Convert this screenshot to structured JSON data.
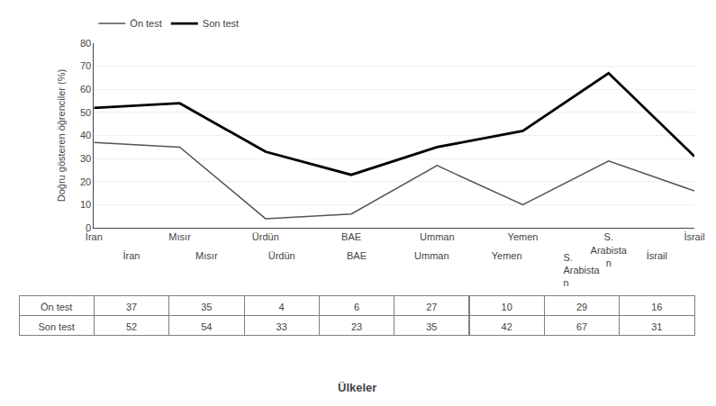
{
  "chart_data": {
    "type": "line",
    "categories": [
      "İran",
      "Mısır",
      "Ürdün",
      "BAE",
      "Umman",
      "Yemen",
      "S.\nArabista\nn",
      "İsrail"
    ],
    "series": [
      {
        "name": "Ön test",
        "color": "#555555",
        "values": [
          37,
          35,
          4,
          6,
          27,
          10,
          29,
          16
        ]
      },
      {
        "name": "Son test",
        "color": "#000000",
        "values": [
          52,
          54,
          33,
          23,
          35,
          42,
          67,
          31
        ]
      }
    ],
    "ylabel": "Doğru gösteren öğrenciler (%)",
    "xlabel": "Ülkeler",
    "ylim": [
      0,
      80
    ],
    "yticks": [
      0,
      10,
      20,
      30,
      40,
      50,
      60,
      70,
      80
    ],
    "grid": true
  }
}
